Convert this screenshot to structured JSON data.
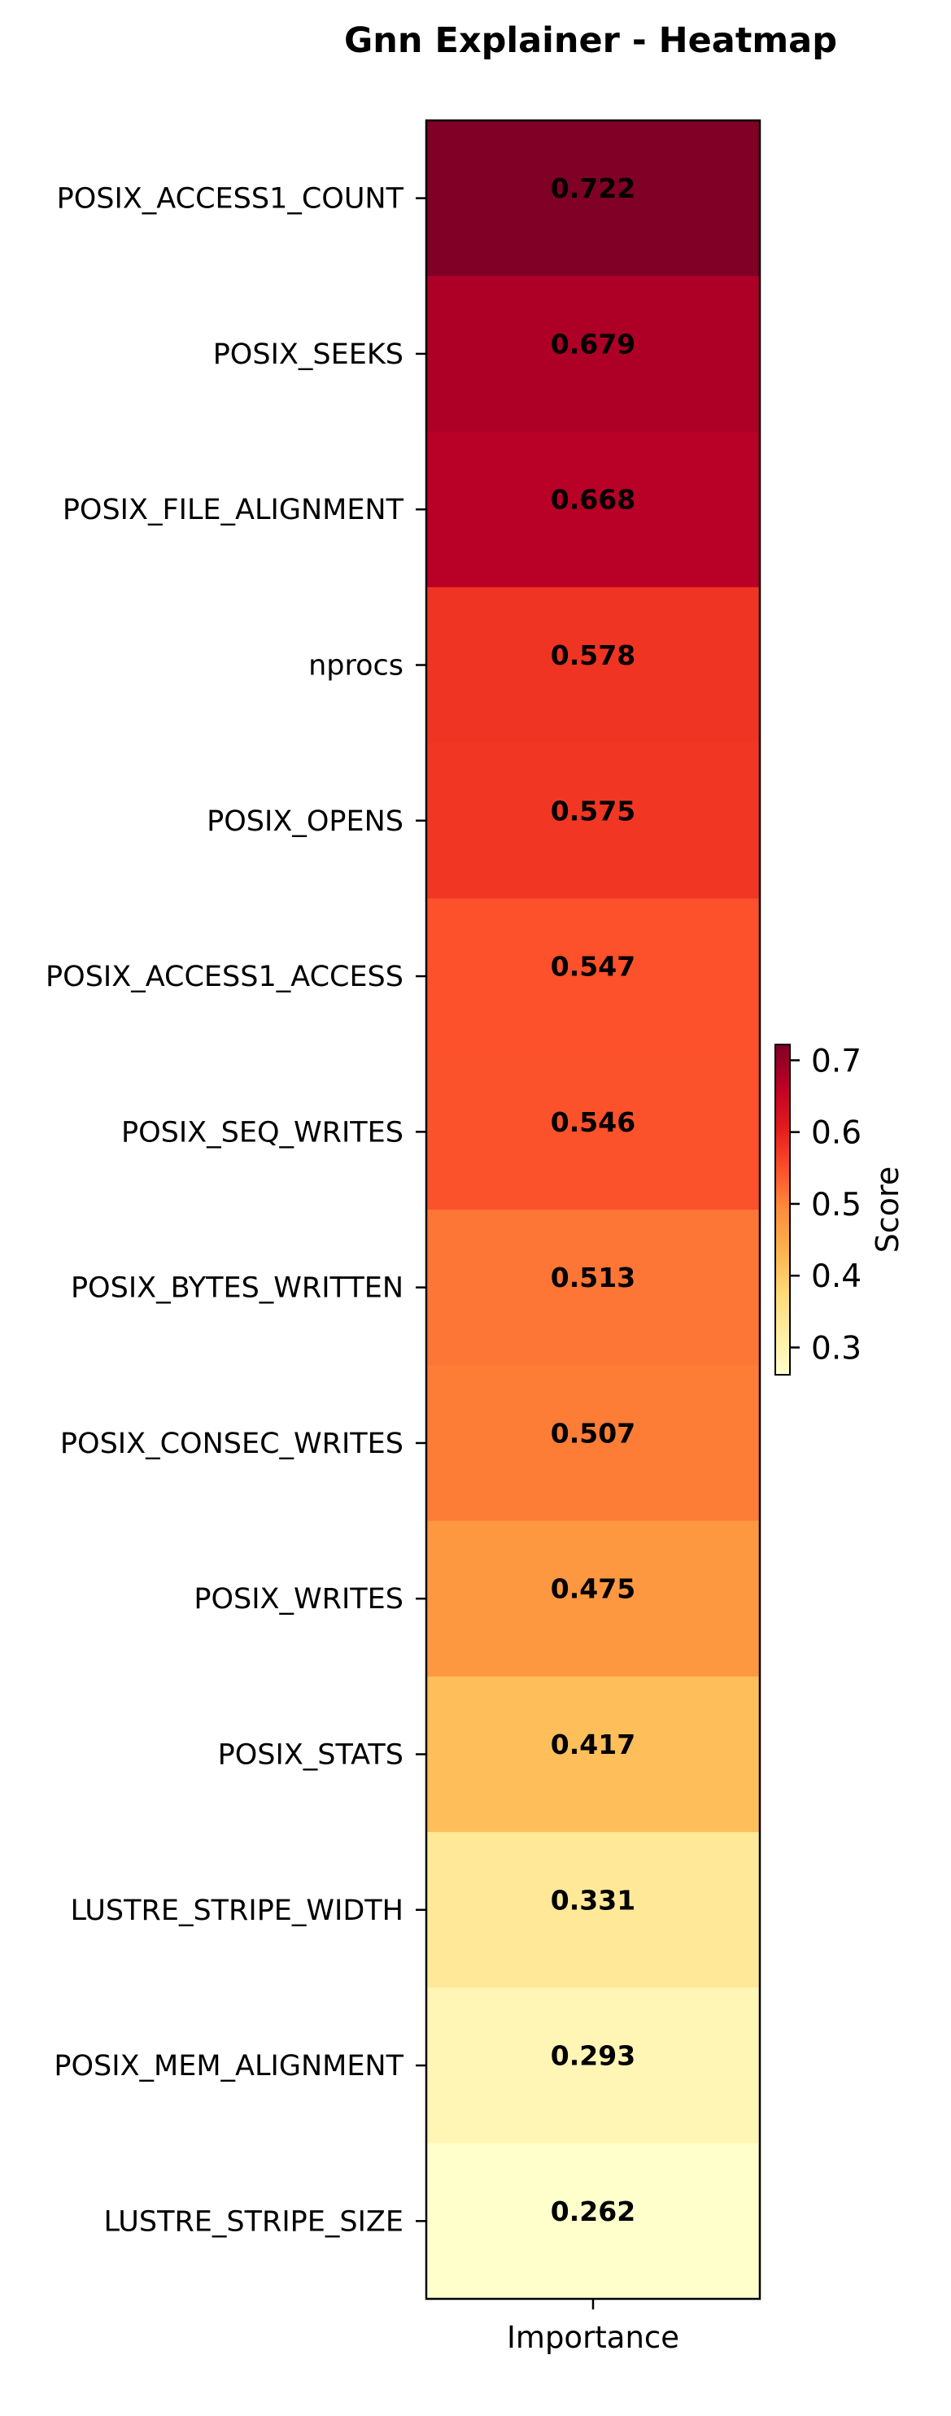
{
  "chart_data": {
    "type": "heatmap",
    "title": "Gnn Explainer - Heatmap",
    "columns": [
      "Importance"
    ],
    "rows": [
      "POSIX_ACCESS1_COUNT",
      "POSIX_SEEKS",
      "POSIX_FILE_ALIGNMENT",
      "nprocs",
      "POSIX_OPENS",
      "POSIX_ACCESS1_ACCESS",
      "POSIX_SEQ_WRITES",
      "POSIX_BYTES_WRITTEN",
      "POSIX_CONSEC_WRITES",
      "POSIX_WRITES",
      "POSIX_STATS",
      "LUSTRE_STRIPE_WIDTH",
      "POSIX_MEM_ALIGNMENT",
      "LUSTRE_STRIPE_SIZE"
    ],
    "values": [
      0.722,
      0.679,
      0.668,
      0.578,
      0.575,
      0.547,
      0.546,
      0.513,
      0.507,
      0.475,
      0.417,
      0.331,
      0.293,
      0.262
    ],
    "value_labels": [
      "0.722",
      "0.679",
      "0.668",
      "0.578",
      "0.575",
      "0.547",
      "0.546",
      "0.513",
      "0.507",
      "0.475",
      "0.417",
      "0.331",
      "0.293",
      "0.262"
    ],
    "colormap": "YlOrRd",
    "colorbar": {
      "label": "Score",
      "range": [
        0.262,
        0.722
      ],
      "ticks": [
        0.3,
        0.4,
        0.5,
        0.6,
        0.7
      ],
      "tick_labels": [
        "0.3",
        "0.4",
        "0.5",
        "0.6",
        "0.7"
      ]
    },
    "annotation_text_colors": {
      "dark": "#ffffff",
      "light": "#000000"
    },
    "grid": false
  }
}
